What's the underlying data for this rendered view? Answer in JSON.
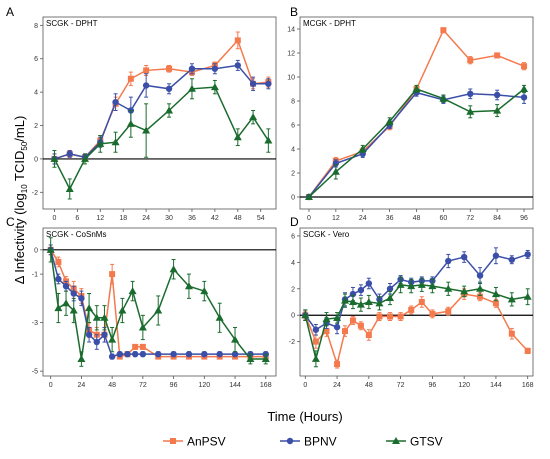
{
  "figure": {
    "ylabel": "Δ Infectivity (log₁₀ TCID₅₀/mL)",
    "xlabel": "Time (Hours)"
  },
  "legend": [
    {
      "name": "AnPSV",
      "color": "#f47a4e",
      "marker": "square"
    },
    {
      "name": "BPNV",
      "color": "#3b4fa8",
      "marker": "circle"
    },
    {
      "name": "GTSV",
      "color": "#1a6b2e",
      "marker": "triangle"
    }
  ],
  "chart_data": [
    {
      "type": "line",
      "panel_letter": "A",
      "title": "SCGK - DPHT",
      "xlim": [
        -3,
        58
      ],
      "ylim": [
        -3,
        8.5
      ],
      "xticks": [
        0,
        6,
        12,
        18,
        24,
        30,
        36,
        42,
        48,
        54
      ],
      "yticks": [
        -2,
        0,
        2,
        4,
        6,
        8
      ],
      "series": [
        {
          "name": "AnPSV",
          "x": [
            0,
            4,
            8,
            12,
            16,
            20,
            24,
            30,
            36,
            42,
            48,
            52,
            56
          ],
          "y": [
            0,
            0.3,
            0.1,
            1.1,
            3.3,
            4.8,
            5.3,
            5.4,
            5.2,
            5.6,
            7.1,
            4.5,
            4.6
          ],
          "err": [
            0.3,
            0.2,
            0.2,
            0.3,
            0.4,
            0.4,
            0.3,
            0.2,
            0.2,
            0.2,
            0.5,
            0.3,
            0.3
          ]
        },
        {
          "name": "BPNV",
          "x": [
            0,
            4,
            8,
            12,
            16,
            20,
            24,
            30,
            36,
            42,
            48,
            52,
            56
          ],
          "y": [
            0,
            0.3,
            0.1,
            1.0,
            3.4,
            2.9,
            4.4,
            4.2,
            5.4,
            5.4,
            5.6,
            4.5,
            4.5
          ],
          "err": [
            0.3,
            0.2,
            0.2,
            0.3,
            0.5,
            0.8,
            0.7,
            0.3,
            0.3,
            0.3,
            0.3,
            0.4,
            0.3
          ]
        },
        {
          "name": "GTSV",
          "x": [
            0,
            4,
            8,
            12,
            16,
            20,
            24,
            30,
            36,
            42,
            48,
            52,
            56
          ],
          "y": [
            0,
            -1.8,
            0,
            0.9,
            1.0,
            2.1,
            1.7,
            2.9,
            4.2,
            4.3,
            1.3,
            2.5,
            1.1
          ],
          "err": [
            0.5,
            0.6,
            0.3,
            0.5,
            0.6,
            0.8,
            1.6,
            0.4,
            0.6,
            0.4,
            0.5,
            0.4,
            0.7
          ]
        }
      ]
    },
    {
      "type": "line",
      "panel_letter": "B",
      "title": "MCGK - DPHT",
      "xlim": [
        -4,
        100
      ],
      "ylim": [
        -1,
        15
      ],
      "xticks": [
        0,
        12,
        24,
        36,
        48,
        60,
        72,
        84,
        96
      ],
      "yticks": [
        0,
        2,
        4,
        6,
        8,
        10,
        12,
        14
      ],
      "series": [
        {
          "name": "AnPSV",
          "x": [
            0,
            12,
            24,
            36,
            48,
            60,
            72,
            84,
            96
          ],
          "y": [
            0,
            3.0,
            3.8,
            5.9,
            9.0,
            13.9,
            11.4,
            11.8,
            10.9
          ],
          "err": [
            0.2,
            0.3,
            0.3,
            0.3,
            0.3,
            0.2,
            0.3,
            0.2,
            0.3
          ]
        },
        {
          "name": "BPNV",
          "x": [
            0,
            12,
            24,
            36,
            48,
            60,
            72,
            84,
            96
          ],
          "y": [
            0,
            2.8,
            3.6,
            6.0,
            8.7,
            8.1,
            8.6,
            8.5,
            8.3
          ],
          "err": [
            0.2,
            0.3,
            0.3,
            0.3,
            0.3,
            0.3,
            0.4,
            0.4,
            0.5
          ]
        },
        {
          "name": "GTSV",
          "x": [
            0,
            12,
            24,
            36,
            48,
            60,
            72,
            84,
            96
          ],
          "y": [
            0,
            2.1,
            4.0,
            6.3,
            9.0,
            8.2,
            7.1,
            7.2,
            9.0
          ],
          "err": [
            0.2,
            0.6,
            0.3,
            0.3,
            0.3,
            0.3,
            0.5,
            0.5,
            0.3
          ]
        }
      ]
    },
    {
      "type": "line",
      "panel_letter": "C",
      "title": "SCGK - CoSnMs",
      "xlim": [
        -6,
        176
      ],
      "ylim": [
        -5.2,
        0.9
      ],
      "xticks": [
        0,
        24,
        48,
        72,
        96,
        120,
        144,
        168
      ],
      "yticks": [
        0,
        -1,
        -3,
        -5
      ],
      "series": [
        {
          "name": "AnPSV",
          "x": [
            0,
            6,
            12,
            18,
            24,
            30,
            36,
            42,
            48,
            54,
            60,
            66,
            72,
            84,
            96,
            108,
            120,
            132,
            144,
            156,
            168
          ],
          "y": [
            0,
            -0.5,
            -1.3,
            -1.6,
            -1.9,
            -3.3,
            -3.5,
            -3.5,
            -1.0,
            -4.4,
            -4.3,
            -4.0,
            -4.0,
            -4.4,
            -4.4,
            -4.4,
            -4.4,
            -4.4,
            -4.4,
            -4.4,
            -4.4
          ],
          "err": [
            0.2,
            0.2,
            0.2,
            0.3,
            0.3,
            0.3,
            0.3,
            0.3,
            0.4,
            0.1,
            0.1,
            0.1,
            0.1,
            0.1,
            0.1,
            0.1,
            0.1,
            0.1,
            0.1,
            0.1,
            0.1
          ]
        },
        {
          "name": "BPNV",
          "x": [
            0,
            6,
            12,
            18,
            24,
            30,
            36,
            42,
            48,
            54,
            60,
            66,
            72,
            84,
            96,
            108,
            120,
            132,
            144,
            156,
            168
          ],
          "y": [
            0,
            -1.2,
            -1.5,
            -1.8,
            -2.0,
            -3.5,
            -3.8,
            -3.5,
            -4.4,
            -4.3,
            -4.3,
            -4.3,
            -4.3,
            -4.3,
            -4.3,
            -4.3,
            -4.3,
            -4.3,
            -4.3,
            -4.3,
            -4.3
          ],
          "err": [
            0.2,
            0.2,
            0.2,
            0.3,
            0.3,
            0.3,
            0.3,
            0.3,
            0.1,
            0.1,
            0.1,
            0.1,
            0.1,
            0.1,
            0.1,
            0.1,
            0.1,
            0.1,
            0.1,
            0.1,
            0.1
          ]
        },
        {
          "name": "GTSV",
          "x": [
            0,
            6,
            12,
            18,
            24,
            30,
            36,
            42,
            48,
            56,
            64,
            72,
            84,
            96,
            108,
            120,
            132,
            144,
            156,
            168
          ],
          "y": [
            0,
            -2.4,
            -2.2,
            -2.5,
            -4.5,
            -2.4,
            -2.8,
            -2.8,
            -3.7,
            -2.5,
            -1.7,
            -3.2,
            -2.5,
            -0.8,
            -1.5,
            -1.7,
            -2.8,
            -3.7,
            -4.5,
            -4.5
          ],
          "err": [
            0.5,
            0.6,
            0.5,
            0.5,
            0.3,
            0.6,
            0.5,
            0.5,
            0.5,
            0.5,
            0.4,
            0.5,
            0.6,
            0.4,
            0.5,
            0.4,
            0.6,
            0.5,
            0.2,
            0.2
          ]
        }
      ]
    },
    {
      "type": "line",
      "panel_letter": "D",
      "title": "SCGK - Vero",
      "xlim": [
        -4,
        172
      ],
      "ylim": [
        -4.6,
        6.6
      ],
      "xticks": [
        0,
        24,
        48,
        72,
        96,
        120,
        144,
        168
      ],
      "yticks": [
        -2,
        0,
        2,
        4,
        6
      ],
      "series": [
        {
          "name": "AnPSV",
          "x": [
            0,
            8,
            16,
            24,
            30,
            36,
            42,
            48,
            56,
            64,
            72,
            80,
            88,
            96,
            108,
            120,
            132,
            144,
            156,
            168
          ],
          "y": [
            0,
            -2.0,
            -1.2,
            -3.7,
            -1.2,
            -0.4,
            -0.8,
            -1.5,
            -0.1,
            -0.1,
            -0.1,
            0.4,
            1.0,
            0.1,
            0.3,
            1.6,
            1.4,
            0.9,
            -1.4,
            -2.7
          ],
          "err": [
            0.3,
            0.5,
            0.4,
            0.3,
            0.4,
            0.3,
            0.3,
            0.4,
            0.3,
            0.3,
            0.3,
            0.3,
            0.4,
            0.3,
            0.3,
            0.4,
            0.3,
            0.3,
            0.4,
            0.2
          ]
        },
        {
          "name": "BPNV",
          "x": [
            0,
            8,
            16,
            24,
            30,
            36,
            42,
            48,
            56,
            64,
            72,
            80,
            88,
            96,
            108,
            120,
            132,
            144,
            156,
            168
          ],
          "y": [
            0,
            -1.1,
            -0.6,
            -0.9,
            1.2,
            1.6,
            1.9,
            2.4,
            1.2,
            2.0,
            2.7,
            2.5,
            2.6,
            2.6,
            4.1,
            4.4,
            3.0,
            4.5,
            4.2,
            4.6
          ],
          "err": [
            0.4,
            0.4,
            0.4,
            0.5,
            0.5,
            0.5,
            0.4,
            0.4,
            0.4,
            0.4,
            0.3,
            0.3,
            0.3,
            0.3,
            0.5,
            0.4,
            0.6,
            0.6,
            0.3,
            0.3
          ]
        },
        {
          "name": "GTSV",
          "x": [
            0,
            8,
            16,
            24,
            30,
            36,
            42,
            48,
            56,
            64,
            72,
            80,
            88,
            96,
            108,
            120,
            132,
            144,
            156,
            168
          ],
          "y": [
            0,
            -3.3,
            -0.3,
            -0.2,
            1.1,
            1.0,
            0.8,
            1.0,
            0.9,
            1.3,
            2.3,
            2.2,
            2.3,
            2.2,
            2.0,
            1.8,
            2.0,
            1.6,
            1.2,
            1.4
          ],
          "err": [
            0.4,
            0.6,
            0.5,
            0.4,
            0.5,
            0.5,
            0.5,
            0.5,
            0.5,
            0.5,
            0.6,
            0.5,
            0.5,
            0.5,
            0.5,
            0.4,
            0.5,
            0.5,
            0.5,
            0.6
          ]
        }
      ]
    }
  ]
}
